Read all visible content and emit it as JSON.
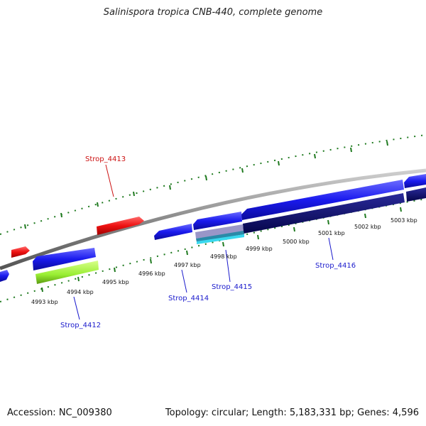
{
  "title": "Salinispora tropica CNB-440, complete genome",
  "accession_label": "Accession: NC_009380",
  "summary_label": "Topology: circular; Length: 5,183,331 bp; Genes: 4,596",
  "colors": {
    "backbone": "#8a8a8a",
    "tick": "#1f7a1f",
    "forward_gene": "#1a1aee",
    "reverse_gene": "#0a0a6e",
    "red_gene": "#ee1111",
    "green_gene": "#99ee33",
    "label_blue": "#1a1acc",
    "label_red": "#cc1111"
  },
  "ticks": [
    "4993 kbp",
    "4994 kbp",
    "4995 kbp",
    "4996 kbp",
    "4997 kbp",
    "4998 kbp",
    "4999 kbp",
    "5000 kbp",
    "5001 kbp",
    "5002 kbp",
    "5003 kbp"
  ],
  "gene_labels": [
    "Strop_4413",
    "Strop_4412",
    "Strop_4414",
    "Strop_4415",
    "Strop_4416"
  ]
}
